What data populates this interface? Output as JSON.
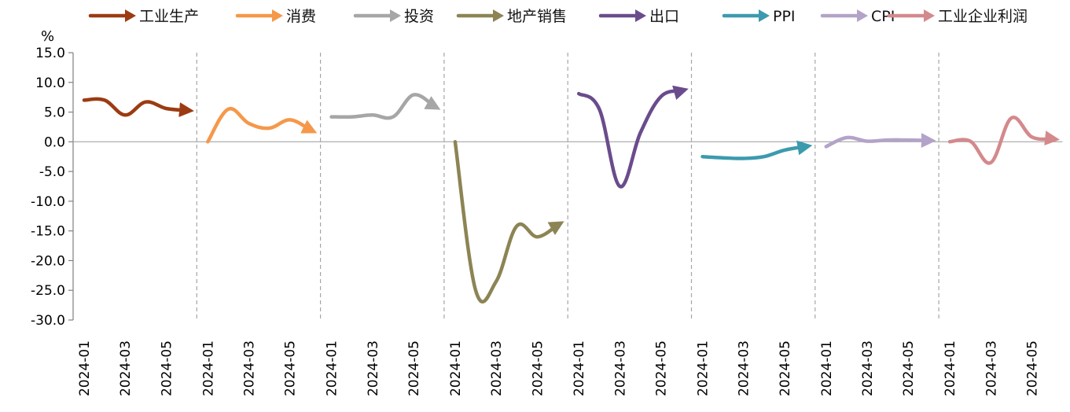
{
  "chart_data": {
    "type": "line",
    "title": "",
    "xlabel": "",
    "ylabel": "%",
    "ylim": [
      -30,
      15
    ],
    "yticks": [
      "15.0",
      "10.0",
      "5.0",
      "0.0",
      "-5.0",
      "-10.0",
      "-15.0",
      "-20.0",
      "-25.0",
      "-30.0"
    ],
    "ytick_values": [
      15,
      10,
      5,
      0,
      -5,
      -10,
      -15,
      -20,
      -25,
      -30
    ],
    "x": [
      "2024-01",
      "2024-02",
      "2024-03",
      "2024-04",
      "2024-05",
      "2024-06"
    ],
    "x_tick_labels": [
      "2024-01",
      "2024-03",
      "2024-05"
    ],
    "grid": false,
    "legend_position": "top",
    "panel_separator": "dashed",
    "series": [
      {
        "name": "工业生产",
        "color": "#9C3B12",
        "values": [
          7.0,
          7.0,
          4.5,
          6.7,
          5.6,
          5.3
        ]
      },
      {
        "name": "消费",
        "color": "#F5984A",
        "values": [
          0.0,
          5.5,
          3.1,
          2.3,
          3.7,
          2.0
        ]
      },
      {
        "name": "投资",
        "color": "#A6A6A6",
        "values": [
          4.2,
          4.2,
          4.5,
          4.2,
          7.9,
          6.0
        ]
      },
      {
        "name": "地产销售",
        "color": "#8C8454",
        "values": [
          0.0,
          -25.0,
          -23.5,
          -14.2,
          -16.0,
          -14.0
        ]
      },
      {
        "name": "出口",
        "color": "#6A4C8C",
        "values": [
          8.1,
          5.5,
          -7.5,
          1.5,
          7.6,
          8.6
        ]
      },
      {
        "name": "PPI",
        "color": "#3C9AAE",
        "values": [
          -2.5,
          -2.7,
          -2.8,
          -2.5,
          -1.4,
          -0.8
        ]
      },
      {
        "name": "CPI",
        "color": "#B4A3C8",
        "values": [
          -0.8,
          0.7,
          0.1,
          0.3,
          0.3,
          0.2
        ]
      },
      {
        "name": "工业企业利润",
        "color": "#D4898C",
        "values": [
          0.0,
          0.1,
          -3.5,
          4.0,
          0.8,
          0.5
        ]
      }
    ]
  }
}
